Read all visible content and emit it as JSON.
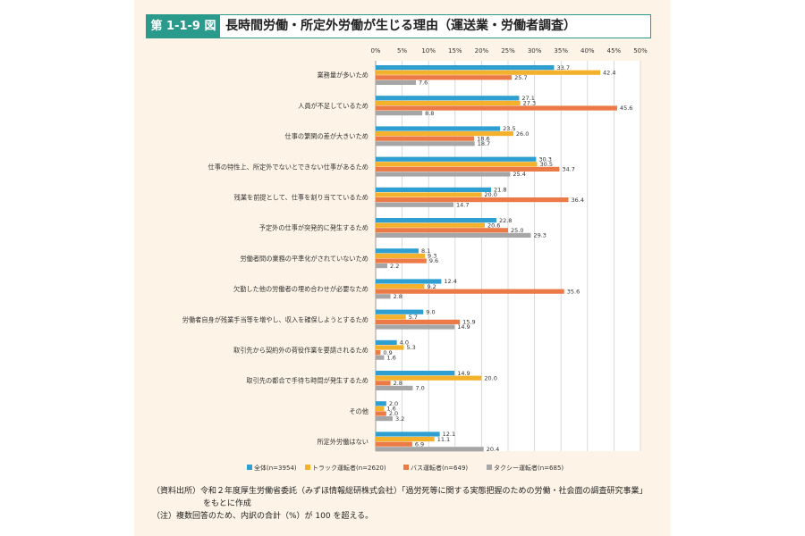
{
  "header": {
    "figure_number": "第 1-1-9 図",
    "title": "長時間労働・所定外労働が生じる理由（運送業・労働者調査）"
  },
  "chart_data": {
    "type": "bar",
    "orientation": "horizontal",
    "x_ticks": [
      "0%",
      "5%",
      "10%",
      "15%",
      "20%",
      "25%",
      "30%",
      "35%",
      "40%",
      "45%",
      "50%"
    ],
    "xlim": [
      0,
      50
    ],
    "grid": true,
    "legend_position": "bottom",
    "categories": [
      "業務量が多いため",
      "人員が不足しているため",
      "仕事の繁閑の差が大きいため",
      "仕事の特性上、所定外でないとできない仕事があるため",
      "残業を前提として、仕事を割り当てているため",
      "予定外の仕事が突発的に発生するため",
      "労働者間の業務の平準化がされていないため",
      "欠勤した他の労働者の埋め合わせが必要なため",
      "労働者自身が残業手当等を増やし、収入を確保しようとするため",
      "取引先から契約外の荷役作業を要請されるため",
      "取引先の都合で手待ち時間が発生するため",
      "その他",
      "所定外労働はない"
    ],
    "series": [
      {
        "name": "全体(n=3954)",
        "color": "#2e9fd0",
        "values": [
          33.7,
          27.1,
          23.5,
          30.3,
          21.8,
          22.8,
          8.1,
          12.4,
          9.0,
          4.0,
          14.9,
          2.0,
          12.1
        ]
      },
      {
        "name": "トラック運転者(n=2620)",
        "color": "#f4b12c",
        "values": [
          42.4,
          27.3,
          26.0,
          30.5,
          20.0,
          20.6,
          9.3,
          9.2,
          5.7,
          5.3,
          20.0,
          1.6,
          11.1
        ]
      },
      {
        "name": "バス運転者(n=649)",
        "color": "#ec7a47",
        "values": [
          25.7,
          45.6,
          18.6,
          34.7,
          36.4,
          25.0,
          9.6,
          35.6,
          15.9,
          0.9,
          2.8,
          2.0,
          6.9
        ]
      },
      {
        "name": "タクシー運転者(n=685)",
        "color": "#a6a6a6",
        "values": [
          7.6,
          8.8,
          18.7,
          25.4,
          14.7,
          29.3,
          2.2,
          2.8,
          14.9,
          1.6,
          7.0,
          3.2,
          20.4
        ]
      }
    ]
  },
  "notes": {
    "source_line1": "（資料出所）令和２年度厚生労働省委託（みずほ情報総研株式会社）「過労死等に関する実態把握のための労働・社会面の調査研究事業」",
    "source_line2": "をもとに作成",
    "note": "（注）複数回答のため、内訳の合計（%）が 100 を超える。"
  }
}
